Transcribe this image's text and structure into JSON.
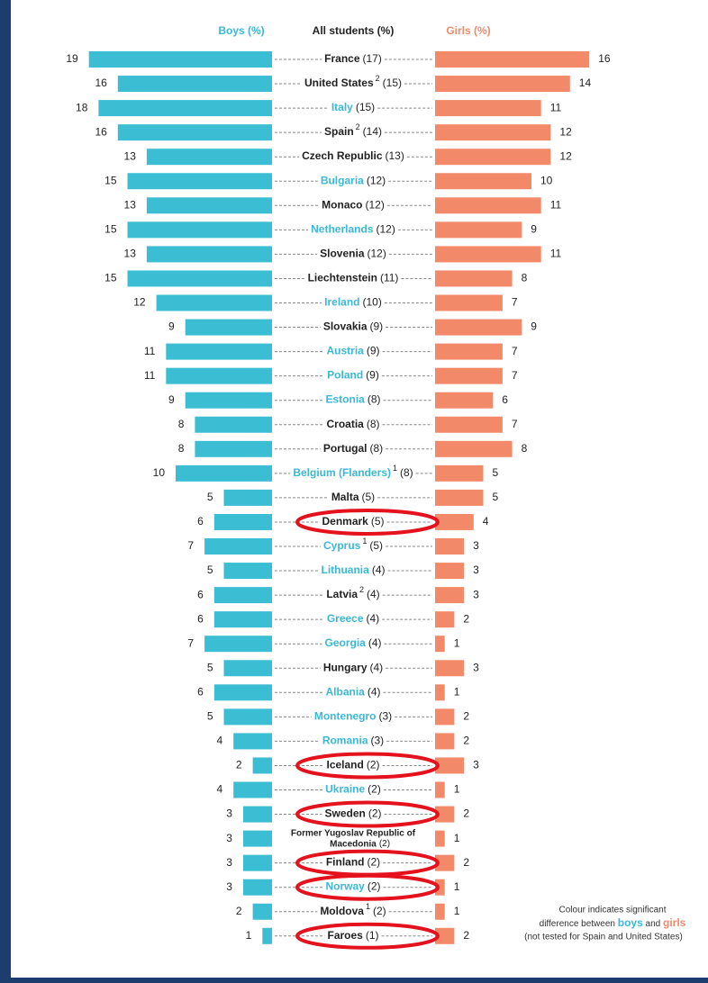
{
  "chart_data": {
    "type": "butterfly-bar",
    "header_boys": "Boys (%)",
    "header_all": "All students (%)",
    "header_girls": "Girls (%)",
    "categories": [
      "France",
      "United States",
      "Italy",
      "Spain",
      "Czech Republic",
      "Bulgaria",
      "Monaco",
      "Netherlands",
      "Slovenia",
      "Liechtenstein",
      "Ireland",
      "Slovakia",
      "Austria",
      "Poland",
      "Estonia",
      "Croatia",
      "Portugal",
      "Belgium (Flanders)",
      "Malta",
      "Denmark",
      "Cyprus",
      "Lithuania",
      "Latvia",
      "Greece",
      "Georgia",
      "Hungary",
      "Albania",
      "Montenegro",
      "Romania",
      "Iceland",
      "Ukraine",
      "Sweden",
      "Former Yugoslav Republic of Macedonia",
      "Finland",
      "Norway",
      "Moldova",
      "Faroes"
    ],
    "notes": [
      null,
      "2",
      null,
      "2",
      null,
      null,
      null,
      null,
      null,
      null,
      null,
      null,
      null,
      null,
      null,
      null,
      null,
      "1",
      null,
      null,
      "1",
      null,
      "2",
      null,
      null,
      null,
      null,
      null,
      null,
      null,
      null,
      null,
      null,
      null,
      null,
      "1",
      null
    ],
    "category_colors": [
      "#222222",
      "#222222",
      "#3bb8d8",
      "#222222",
      "#222222",
      "#3bb8d8",
      "#222222",
      "#3bb8d8",
      "#222222",
      "#222222",
      "#3bb8d8",
      "#222222",
      "#3bb8d8",
      "#3bb8d8",
      "#3bb8d8",
      "#222222",
      "#222222",
      "#3bb8d8",
      "#222222",
      "#222222",
      "#3bb8d8",
      "#3bb8d8",
      "#222222",
      "#3bb8d8",
      "#3bb8d8",
      "#222222",
      "#3bb8d8",
      "#3bb8d8",
      "#3bb8d8",
      "#222222",
      "#3bb8d8",
      "#222222",
      "#222222",
      "#222222",
      "#3bb8d8",
      "#222222",
      "#222222"
    ],
    "circled": [
      false,
      false,
      false,
      false,
      false,
      false,
      false,
      false,
      false,
      false,
      false,
      false,
      false,
      false,
      false,
      false,
      false,
      false,
      false,
      true,
      false,
      false,
      false,
      false,
      false,
      false,
      false,
      false,
      false,
      true,
      false,
      true,
      false,
      true,
      true,
      false,
      true
    ],
    "all_students": {
      "values": [
        17,
        15,
        15,
        14,
        13,
        12,
        12,
        12,
        12,
        11,
        10,
        9,
        9,
        9,
        8,
        8,
        8,
        8,
        5,
        5,
        5,
        4,
        4,
        4,
        4,
        4,
        4,
        3,
        3,
        2,
        2,
        2,
        2,
        2,
        2,
        2,
        1
      ],
      "value_labels": [
        "(17)",
        "(15)",
        "(15)",
        "(14)",
        "(13)",
        "(12)",
        "(12)",
        "(12)",
        "(12)",
        "(11)",
        "(10)",
        "(9)",
        "(9)",
        "(9)",
        "(8)",
        "(8)",
        "(8)",
        "(8)",
        "(5)",
        "(5)",
        "(5)",
        "(4)",
        "(4)",
        "(4)",
        "(4)",
        "(4)",
        "(4)",
        "(3)",
        "(3)",
        "(2)",
        "(2)",
        "(2)",
        "(2)",
        "(2)",
        "(2)",
        "(2)",
        "(1)"
      ]
    },
    "series": [
      {
        "name": "Boys",
        "color": "#3bbdd4",
        "values": [
          19,
          16,
          18,
          16,
          13,
          15,
          13,
          15,
          13,
          15,
          12,
          9,
          11,
          11,
          9,
          8,
          8,
          10,
          5,
          6,
          7,
          5,
          6,
          6,
          7,
          5,
          6,
          5,
          4,
          2,
          4,
          3,
          3,
          3,
          3,
          2,
          1
        ]
      },
      {
        "name": "Girls",
        "color": "#f28a6a",
        "values": [
          16,
          14,
          11,
          12,
          12,
          10,
          11,
          9,
          11,
          8,
          7,
          9,
          7,
          7,
          6,
          7,
          8,
          5,
          5,
          4,
          3,
          3,
          3,
          2,
          1,
          3,
          1,
          2,
          2,
          3,
          1,
          2,
          1,
          2,
          1,
          1,
          2
        ]
      }
    ],
    "xlim": [
      0,
      20
    ],
    "note": [
      "Colour indicates significant",
      "difference between",
      "boys",
      "and",
      "girls",
      "(not tested for Spain and United States)"
    ]
  }
}
